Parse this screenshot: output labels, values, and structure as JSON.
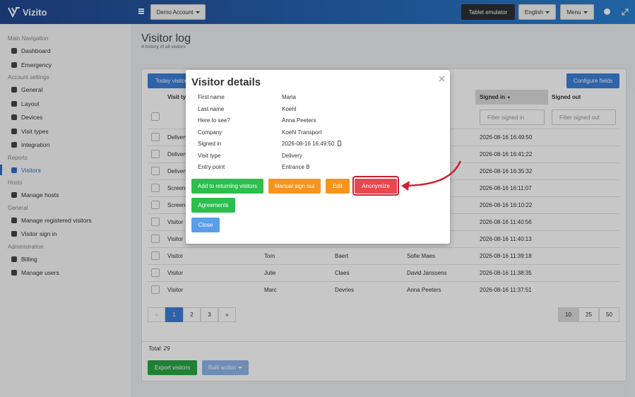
{
  "header": {
    "brand": "Vizito",
    "account": "Demo Account",
    "tablet": "Tablet emulator",
    "language": "English",
    "menu": "Menu"
  },
  "sidebar": {
    "sections": [
      {
        "title": "Main Navigation",
        "items": [
          "Dashboard",
          "Emergency"
        ]
      },
      {
        "title": "Account settings",
        "items": [
          "General",
          "Layout",
          "Devices",
          "Visit types",
          "Integration"
        ]
      },
      {
        "title": "Reports",
        "items": [
          "Visitors"
        ]
      },
      {
        "title": "Hosts",
        "items": [
          "Manage hosts"
        ]
      },
      {
        "title": "General",
        "items": [
          "Manage registered visitors",
          "Visitor sign in"
        ]
      },
      {
        "title": "Administration",
        "items": [
          "Billing",
          "Manage users"
        ]
      }
    ]
  },
  "page": {
    "title": "Visitor log",
    "subtitle": "A history of all visitors"
  },
  "toolbar": {
    "today": "Today visitors",
    "configure": "Configure fields"
  },
  "table": {
    "headers": {
      "type": "Visit type",
      "signed_in": "Signed in",
      "signed_out": "Signed out"
    },
    "filters": {
      "signed_in": "Filter signed in",
      "signed_out": "Filter signed out"
    },
    "rows": [
      {
        "type": "Delivery",
        "signed_in": "2026-08-16 16:49:50"
      },
      {
        "type": "Delivery",
        "signed_in": "2026-08-16 16:41:22"
      },
      {
        "type": "Delivery",
        "signed_in": "2026-08-16 16:35:32"
      },
      {
        "type": "Screening",
        "signed_in": "2026-08-16 16:11:07"
      },
      {
        "type": "Screening",
        "signed_in": "2026-08-16 16:10:22"
      },
      {
        "type": "Visitor",
        "signed_in": "2026-08-16 11:40:56"
      },
      {
        "type": "Visitor",
        "signed_in": "2026-08-16 11:40:13"
      },
      {
        "type": "Visitor",
        "first": "Tom",
        "last": "Baert",
        "host": "Sofie Maes",
        "signed_in": "2026-08-16 11:39:18"
      },
      {
        "type": "Visitor",
        "first": "Julie",
        "last": "Claes",
        "host": "David Janssens",
        "signed_in": "2026-08-16 11:38:35"
      },
      {
        "type": "Visitor",
        "first": "Marc",
        "last": "Devries",
        "host": "Anna Peeters",
        "signed_in": "2026-08-16 11:37:51"
      }
    ]
  },
  "pagination": {
    "pages": [
      "«",
      "1",
      "2",
      "3",
      "»"
    ],
    "sizes": [
      "10",
      "25",
      "50"
    ]
  },
  "footer": {
    "total": "Total: 29",
    "export": "Export visitors",
    "bulk": "Bulk action"
  },
  "modal": {
    "title": "Visitor details",
    "fields": [
      {
        "label": "First name",
        "value": "Maria"
      },
      {
        "label": "Last name",
        "value": "Koehl"
      },
      {
        "label": "Here to see?",
        "value": "Anna Peeters"
      },
      {
        "label": "Company",
        "value": "Koehl Transport"
      },
      {
        "label": "Signed in",
        "value": "2026-08-16 16:49:50"
      },
      {
        "label": "Visit type",
        "value": "Delivery"
      },
      {
        "label": "Entry point",
        "value": "Entrance B"
      }
    ],
    "buttons": {
      "returning": "Add to returning visitors",
      "signout": "Manual sign out",
      "edit": "Edit",
      "anonymize": "Anonymize",
      "agreements": "Agreements",
      "close": "Close"
    }
  }
}
